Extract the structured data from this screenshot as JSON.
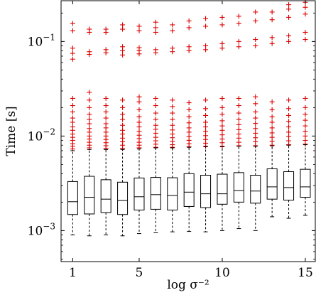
{
  "chart_data": {
    "type": "box",
    "xlabel": "log σ⁻²",
    "ylabel": "Time [s]",
    "y_scale": "log",
    "xlim": [
      0.3,
      15.6
    ],
    "ylim": [
      0.00047,
      0.27
    ],
    "x_ticks": [
      {
        "value": 1,
        "label": "1"
      },
      {
        "value": 5,
        "label": "5"
      },
      {
        "value": 10,
        "label": "10"
      },
      {
        "value": 15,
        "label": "15"
      }
    ],
    "y_ticks": [
      {
        "value": 0.001,
        "base": "10",
        "exp": "−3"
      },
      {
        "value": 0.01,
        "base": "10",
        "exp": "−2"
      },
      {
        "value": 0.1,
        "base": "10",
        "exp": "−1"
      }
    ],
    "box_color": "#000000",
    "outlier_color": "#dd0000",
    "boxes": [
      {
        "x": 1,
        "q1": 0.00148,
        "median": 0.00202,
        "q3": 0.0033,
        "lower_whisker": 0.0009,
        "upper_whisker": 0.007
      },
      {
        "x": 2,
        "q1": 0.0015,
        "median": 0.00225,
        "q3": 0.00375,
        "lower_whisker": 0.00088,
        "upper_whisker": 0.0072
      },
      {
        "x": 3,
        "q1": 0.00155,
        "median": 0.00215,
        "q3": 0.00345,
        "lower_whisker": 0.0009,
        "upper_whisker": 0.0072
      },
      {
        "x": 4,
        "q1": 0.00148,
        "median": 0.00208,
        "q3": 0.00325,
        "lower_whisker": 0.00088,
        "upper_whisker": 0.0072
      },
      {
        "x": 5,
        "q1": 0.00165,
        "median": 0.00228,
        "q3": 0.0036,
        "lower_whisker": 0.00093,
        "upper_whisker": 0.0073
      },
      {
        "x": 6,
        "q1": 0.00168,
        "median": 0.0024,
        "q3": 0.00365,
        "lower_whisker": 0.00095,
        "upper_whisker": 0.0075
      },
      {
        "x": 7,
        "q1": 0.00165,
        "median": 0.00235,
        "q3": 0.00362,
        "lower_whisker": 0.00097,
        "upper_whisker": 0.0075
      },
      {
        "x": 8,
        "q1": 0.0018,
        "median": 0.00255,
        "q3": 0.004,
        "lower_whisker": 0.00098,
        "upper_whisker": 0.0076
      },
      {
        "x": 9,
        "q1": 0.00175,
        "median": 0.00245,
        "q3": 0.00385,
        "lower_whisker": 0.00097,
        "upper_whisker": 0.0077
      },
      {
        "x": 10,
        "q1": 0.0019,
        "median": 0.00245,
        "q3": 0.00395,
        "lower_whisker": 0.001,
        "upper_whisker": 0.0077
      },
      {
        "x": 11,
        "q1": 0.002,
        "median": 0.00265,
        "q3": 0.0041,
        "lower_whisker": 0.00105,
        "upper_whisker": 0.0078
      },
      {
        "x": 12,
        "q1": 0.00195,
        "median": 0.00262,
        "q3": 0.00385,
        "lower_whisker": 0.001,
        "upper_whisker": 0.0078
      },
      {
        "x": 13,
        "q1": 0.00215,
        "median": 0.0029,
        "q3": 0.0045,
        "lower_whisker": 0.0014,
        "upper_whisker": 0.0079
      },
      {
        "x": 14,
        "q1": 0.0021,
        "median": 0.00285,
        "q3": 0.0042,
        "lower_whisker": 0.00135,
        "upper_whisker": 0.008
      },
      {
        "x": 15,
        "q1": 0.00225,
        "median": 0.0029,
        "q3": 0.00445,
        "lower_whisker": 0.00145,
        "upper_whisker": 0.0081
      }
    ],
    "outliers": [
      {
        "x": 1,
        "values": [
          0.0073,
          0.0078,
          0.0083,
          0.009,
          0.0097,
          0.0105,
          0.0115,
          0.0125,
          0.014,
          0.0155,
          0.018,
          0.021,
          0.025,
          0.065,
          0.075,
          0.085,
          0.13,
          0.155
        ]
      },
      {
        "x": 2,
        "values": [
          0.0075,
          0.008,
          0.0086,
          0.0093,
          0.01,
          0.011,
          0.012,
          0.0135,
          0.015,
          0.017,
          0.02,
          0.024,
          0.029,
          0.073,
          0.078,
          0.125,
          0.135
        ]
      },
      {
        "x": 3,
        "values": [
          0.0074,
          0.0079,
          0.0085,
          0.0092,
          0.01,
          0.011,
          0.0122,
          0.0135,
          0.0155,
          0.018,
          0.021,
          0.025,
          0.076,
          0.082,
          0.125,
          0.135
        ]
      },
      {
        "x": 4,
        "values": [
          0.0074,
          0.008,
          0.0087,
          0.0095,
          0.0105,
          0.0115,
          0.013,
          0.015,
          0.017,
          0.02,
          0.024,
          0.072,
          0.08,
          0.088,
          0.135,
          0.15
        ]
      },
      {
        "x": 5,
        "values": [
          0.0075,
          0.008,
          0.0086,
          0.0094,
          0.0102,
          0.0112,
          0.0125,
          0.014,
          0.016,
          0.019,
          0.023,
          0.026,
          0.074,
          0.08,
          0.086,
          0.13,
          0.145
        ]
      },
      {
        "x": 6,
        "values": [
          0.0076,
          0.0082,
          0.0089,
          0.0097,
          0.0107,
          0.0118,
          0.013,
          0.015,
          0.0175,
          0.021,
          0.025,
          0.076,
          0.082,
          0.125,
          0.14,
          0.16
        ]
      },
      {
        "x": 7,
        "values": [
          0.0076,
          0.0081,
          0.0088,
          0.0096,
          0.0105,
          0.0116,
          0.013,
          0.015,
          0.0175,
          0.0205,
          0.024,
          0.078,
          0.085,
          0.13,
          0.15
        ]
      },
      {
        "x": 8,
        "values": [
          0.0077,
          0.0083,
          0.009,
          0.0099,
          0.011,
          0.0122,
          0.0138,
          0.016,
          0.019,
          0.0225,
          0.08,
          0.088,
          0.14,
          0.165
        ]
      },
      {
        "x": 9,
        "values": [
          0.0078,
          0.0084,
          0.0092,
          0.0101,
          0.0112,
          0.0125,
          0.014,
          0.0165,
          0.0195,
          0.024,
          0.082,
          0.09,
          0.145,
          0.175
        ]
      },
      {
        "x": 10,
        "values": [
          0.0078,
          0.0085,
          0.0093,
          0.0103,
          0.0115,
          0.0128,
          0.0145,
          0.017,
          0.02,
          0.025,
          0.085,
          0.095,
          0.15,
          0.18
        ]
      },
      {
        "x": 11,
        "values": [
          0.0079,
          0.0086,
          0.0095,
          0.0105,
          0.0117,
          0.0132,
          0.015,
          0.0175,
          0.021,
          0.025,
          0.088,
          0.1,
          0.155,
          0.185
        ]
      },
      {
        "x": 12,
        "values": [
          0.0079,
          0.0087,
          0.0096,
          0.0107,
          0.012,
          0.0136,
          0.0155,
          0.018,
          0.022,
          0.026,
          0.09,
          0.105,
          0.165,
          0.205
        ]
      },
      {
        "x": 13,
        "values": [
          0.008,
          0.0088,
          0.0097,
          0.0108,
          0.0122,
          0.014,
          0.016,
          0.019,
          0.023,
          0.095,
          0.11,
          0.17,
          0.205
        ]
      },
      {
        "x": 14,
        "values": [
          0.0081,
          0.0089,
          0.0099,
          0.011,
          0.0125,
          0.0143,
          0.0165,
          0.0195,
          0.024,
          0.1,
          0.115,
          0.18,
          0.22,
          0.245
        ]
      },
      {
        "x": 15,
        "values": [
          0.0082,
          0.009,
          0.01,
          0.0112,
          0.0128,
          0.0147,
          0.017,
          0.02,
          0.025,
          0.105,
          0.125,
          0.195,
          0.23,
          0.26
        ]
      }
    ]
  }
}
